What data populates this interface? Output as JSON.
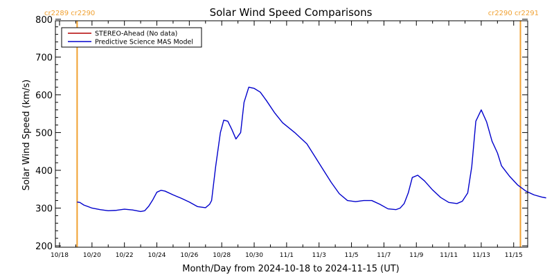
{
  "colors": {
    "stereo": "#b30000",
    "model": "#0000cc",
    "carrington": "#f0a030",
    "axis": "#000000"
  },
  "chart_data": {
    "type": "line",
    "title": "Solar Wind Speed Comparisons",
    "xlabel": "Month/Day from 2024-10-18 to 2024-11-15 (UT)",
    "ylabel": "Solar Wind Speed (km/s)",
    "xlim": [
      "2024-10-18",
      "2024-11-15"
    ],
    "ylim": [
      200,
      800
    ],
    "x_ticks": [
      {
        "date": "2024-10-18",
        "label": "10/18"
      },
      {
        "date": "2024-10-20",
        "label": "10/20"
      },
      {
        "date": "2024-10-22",
        "label": "10/22"
      },
      {
        "date": "2024-10-24",
        "label": "10/24"
      },
      {
        "date": "2024-10-26",
        "label": "10/26"
      },
      {
        "date": "2024-10-28",
        "label": "10/28"
      },
      {
        "date": "2024-10-30",
        "label": "10/30"
      },
      {
        "date": "2024-11-01",
        "label": "11/1"
      },
      {
        "date": "2024-11-03",
        "label": "11/3"
      },
      {
        "date": "2024-11-05",
        "label": "11/5"
      },
      {
        "date": "2024-11-07",
        "label": "11/7"
      },
      {
        "date": "2024-11-09",
        "label": "11/9"
      },
      {
        "date": "2024-11-11",
        "label": "11/11"
      },
      {
        "date": "2024-11-13",
        "label": "11/13"
      },
      {
        "date": "2024-11-15",
        "label": "11/15"
      }
    ],
    "y_ticks": [
      {
        "value": 200,
        "label": "200"
      },
      {
        "value": 300,
        "label": "300"
      },
      {
        "value": 400,
        "label": "400"
      },
      {
        "value": 500,
        "label": "500"
      },
      {
        "value": 600,
        "label": "600"
      },
      {
        "value": 700,
        "label": "700"
      },
      {
        "value": 800,
        "label": "800"
      }
    ],
    "legend": {
      "position": "top-left",
      "entries": [
        {
          "label": "STEREO-Ahead (No data)",
          "series": "stereo"
        },
        {
          "label": "Predictive Science MAS Model",
          "series": "model"
        }
      ]
    },
    "carrington_markers": [
      {
        "date": "2024-10-19 02:00",
        "label": "cr2289 cr2290"
      },
      {
        "date": "2024-11-15 10:00",
        "label": "cr2290 cr2291"
      }
    ],
    "series": [
      {
        "name": "Predictive Science MAS Model",
        "key": "model",
        "points": [
          [
            "2024-10-19 02:00",
            316
          ],
          [
            "2024-10-19 06:00",
            315
          ],
          [
            "2024-10-19 12:00",
            308
          ],
          [
            "2024-10-20 00:00",
            300
          ],
          [
            "2024-10-20 12:00",
            296
          ],
          [
            "2024-10-21 00:00",
            293
          ],
          [
            "2024-10-21 12:00",
            294
          ],
          [
            "2024-10-22 00:00",
            297
          ],
          [
            "2024-10-22 12:00",
            295
          ],
          [
            "2024-10-23 00:00",
            291
          ],
          [
            "2024-10-23 06:00",
            293
          ],
          [
            "2024-10-23 12:00",
            305
          ],
          [
            "2024-10-23 18:00",
            322
          ],
          [
            "2024-10-24 00:00",
            342
          ],
          [
            "2024-10-24 06:00",
            347
          ],
          [
            "2024-10-24 12:00",
            345
          ],
          [
            "2024-10-25 00:00",
            335
          ],
          [
            "2024-10-25 12:00",
            326
          ],
          [
            "2024-10-26 00:00",
            316
          ],
          [
            "2024-10-26 12:00",
            304
          ],
          [
            "2024-10-27 00:00",
            301
          ],
          [
            "2024-10-27 06:00",
            310
          ],
          [
            "2024-10-27 09:00",
            320
          ],
          [
            "2024-10-27 15:00",
            410
          ],
          [
            "2024-10-27 22:00",
            500
          ],
          [
            "2024-10-28 03:00",
            533
          ],
          [
            "2024-10-28 09:00",
            530
          ],
          [
            "2024-10-28 15:00",
            508
          ],
          [
            "2024-10-28 21:00",
            483
          ],
          [
            "2024-10-29 04:00",
            500
          ],
          [
            "2024-10-29 09:00",
            580
          ],
          [
            "2024-10-29 16:00",
            620
          ],
          [
            "2024-10-30 00:00",
            617
          ],
          [
            "2024-10-30 09:00",
            607
          ],
          [
            "2024-10-30 18:00",
            585
          ],
          [
            "2024-10-31 06:00",
            553
          ],
          [
            "2024-10-31 18:00",
            526
          ],
          [
            "2024-11-01 12:00",
            500
          ],
          [
            "2024-11-02 06:00",
            470
          ],
          [
            "2024-11-02 18:00",
            436
          ],
          [
            "2024-11-03 06:00",
            402
          ],
          [
            "2024-11-03 18:00",
            368
          ],
          [
            "2024-11-04 06:00",
            338
          ],
          [
            "2024-11-04 18:00",
            320
          ],
          [
            "2024-11-05 06:00",
            317
          ],
          [
            "2024-11-05 18:00",
            320
          ],
          [
            "2024-11-06 06:00",
            320
          ],
          [
            "2024-11-06 18:00",
            310
          ],
          [
            "2024-11-07 06:00",
            298
          ],
          [
            "2024-11-07 18:00",
            296
          ],
          [
            "2024-11-08 00:00",
            300
          ],
          [
            "2024-11-08 06:00",
            312
          ],
          [
            "2024-11-08 12:00",
            340
          ],
          [
            "2024-11-08 18:00",
            381
          ],
          [
            "2024-11-09 02:00",
            387
          ],
          [
            "2024-11-09 12:00",
            372
          ],
          [
            "2024-11-10 00:00",
            348
          ],
          [
            "2024-11-10 12:00",
            328
          ],
          [
            "2024-11-11 00:00",
            315
          ],
          [
            "2024-11-11 12:00",
            312
          ],
          [
            "2024-11-11 20:00",
            318
          ],
          [
            "2024-11-12 04:00",
            340
          ],
          [
            "2024-11-12 10:00",
            410
          ],
          [
            "2024-11-12 16:00",
            530
          ],
          [
            "2024-11-13 00:00",
            560
          ],
          [
            "2024-11-13 08:00",
            528
          ],
          [
            "2024-11-13 16:00",
            477
          ],
          [
            "2024-11-14 00:00",
            446
          ],
          [
            "2024-11-14 06:00",
            412
          ],
          [
            "2024-11-14 18:00",
            384
          ],
          [
            "2024-11-15 06:00",
            361
          ],
          [
            "2024-11-15 18:00",
            345
          ],
          [
            "2024-11-16 06:00",
            335
          ],
          [
            "2024-11-16 18:00",
            329
          ],
          [
            "2024-11-17 00:00",
            327
          ]
        ]
      }
    ]
  }
}
